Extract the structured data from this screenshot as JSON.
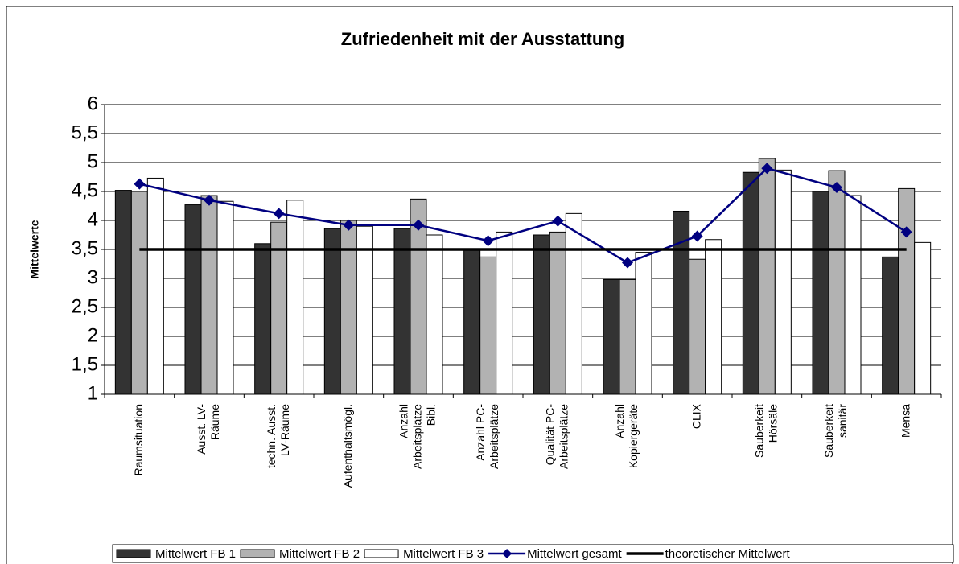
{
  "chart_data": {
    "type": "bar",
    "title": "Zufriedenheit mit der Ausstattung",
    "ylabel": "Mittelwerte",
    "categories": [
      [
        "Raumsituation"
      ],
      [
        "Ausst. LV-",
        "Räume"
      ],
      [
        "techn. Ausst.",
        "LV-Räume"
      ],
      [
        "Aufenthaltsmögl."
      ],
      [
        "Anzahl",
        "Arbeitsplätze",
        "Bibl."
      ],
      [
        "Anzahl PC-",
        "Arbeitsplätze"
      ],
      [
        "Qualität PC-",
        "Arbeitsplätze"
      ],
      [
        "Anzahl",
        "Kopiergeräte"
      ],
      [
        "CLIX"
      ],
      [
        "Sauberkeit",
        "Hörsäle"
      ],
      [
        "Sauberkeit",
        "sanitär"
      ],
      [
        "Mensa"
      ]
    ],
    "series": [
      {
        "name": "Mittelwert FB 1",
        "type": "bar",
        "color": "#333333",
        "values": [
          4.52,
          4.27,
          3.6,
          3.86,
          3.86,
          3.5,
          3.75,
          2.98,
          4.16,
          4.83,
          4.5,
          3.37
        ]
      },
      {
        "name": "Mittelwert FB 2",
        "type": "bar",
        "color": "#b2b2b2",
        "values": [
          4.5,
          4.43,
          3.97,
          4.0,
          4.37,
          3.37,
          3.8,
          2.98,
          3.33,
          5.07,
          4.86,
          4.55
        ]
      },
      {
        "name": "Mittelwert FB 3",
        "type": "bar",
        "color": "#ffffff",
        "values": [
          4.73,
          4.33,
          4.35,
          3.9,
          3.75,
          3.8,
          4.12,
          3.45,
          3.67,
          4.87,
          4.43,
          3.62
        ]
      },
      {
        "name": "Mittelwert gesamt",
        "type": "line",
        "marker": "diamond",
        "color": "#000080",
        "values": [
          4.63,
          4.35,
          4.12,
          3.92,
          3.92,
          3.65,
          3.99,
          3.27,
          3.73,
          4.9,
          4.57,
          3.8
        ]
      },
      {
        "name": "theoretischer Mittelwert",
        "type": "line",
        "color": "#000000",
        "values": [
          3.5,
          3.5,
          3.5,
          3.5,
          3.5,
          3.5,
          3.5,
          3.5,
          3.5,
          3.5,
          3.5,
          3.5
        ]
      }
    ],
    "ylim": [
      1,
      6
    ],
    "yticks": [
      1,
      {
        "value": 1.5,
        "label": "1,5"
      },
      2,
      {
        "value": 2.5,
        "label": "2,5"
      },
      3,
      {
        "value": 3.5,
        "label": "3,5"
      },
      4,
      {
        "value": 4.5,
        "label": "4,5"
      },
      5,
      {
        "value": 5.5,
        "label": "5,5"
      },
      6
    ],
    "grid": true,
    "legend": "bottom"
  }
}
